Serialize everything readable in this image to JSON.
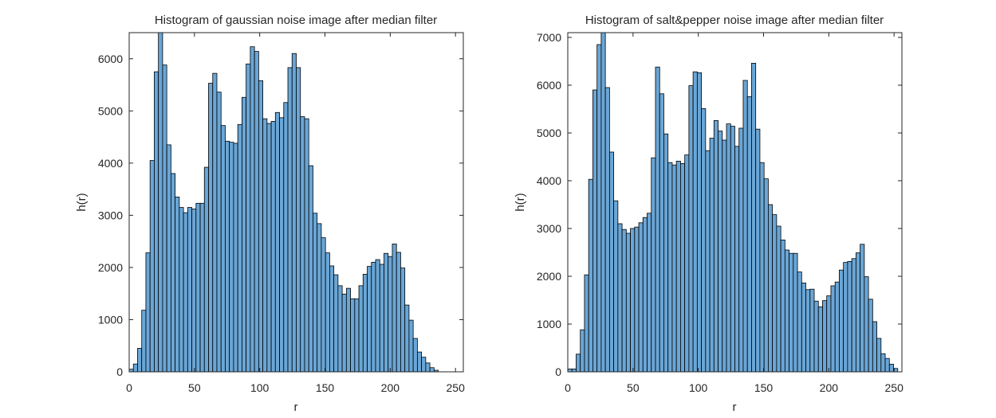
{
  "chart_data": [
    {
      "type": "bar",
      "title": "Histogram of gaussian noise image after median filter",
      "xlabel": "r",
      "ylabel": "h(r)",
      "xlim": [
        0,
        256
      ],
      "ylim": [
        0,
        6500
      ],
      "xticks": [
        0,
        50,
        100,
        150,
        200,
        250
      ],
      "yticks": [
        0,
        1000,
        2000,
        3000,
        4000,
        5000,
        6000
      ],
      "bin_start": 0,
      "bin_width": 3.2,
      "bar_color": "#6aa6d6",
      "edge_color": "#000000",
      "values": [
        50,
        150,
        450,
        1180,
        2280,
        4050,
        5750,
        6500,
        5880,
        4350,
        3800,
        3350,
        3150,
        3050,
        3150,
        3120,
        3230,
        3230,
        3920,
        5530,
        5720,
        5360,
        4720,
        4420,
        4400,
        4380,
        4740,
        5260,
        5900,
        6230,
        6140,
        5580,
        4850,
        4760,
        4800,
        4970,
        4870,
        5160,
        5830,
        6100,
        5830,
        4890,
        4850,
        3950,
        3040,
        2840,
        2570,
        2280,
        2030,
        1860,
        1650,
        1490,
        1600,
        1400,
        1400,
        1650,
        1870,
        2020,
        2100,
        2150,
        2060,
        2270,
        2210,
        2450,
        2290,
        1990,
        1280,
        990,
        640,
        380,
        280,
        170,
        80,
        30,
        0,
        0,
        0,
        0,
        0,
        0
      ]
    },
    {
      "type": "bar",
      "title": "Histogram of salt&pepper noise image after median filter",
      "xlabel": "r",
      "ylabel": "h(r)",
      "xlim": [
        0,
        256
      ],
      "ylim": [
        0,
        7100
      ],
      "xticks": [
        0,
        50,
        100,
        150,
        200,
        250
      ],
      "yticks": [
        0,
        1000,
        2000,
        3000,
        4000,
        5000,
        6000,
        7000
      ],
      "bin_start": 0,
      "bin_width": 3.2,
      "bar_color": "#6aa6d6",
      "edge_color": "#000000",
      "values": [
        60,
        60,
        370,
        880,
        2030,
        4030,
        5900,
        6850,
        7100,
        5950,
        4600,
        3580,
        3100,
        2980,
        2900,
        3000,
        3030,
        3120,
        3230,
        3320,
        4480,
        6380,
        5820,
        4980,
        4380,
        4330,
        4410,
        4360,
        4540,
        5990,
        6280,
        6260,
        5510,
        4630,
        4890,
        5260,
        5040,
        4850,
        5190,
        5140,
        4720,
        5100,
        6100,
        5760,
        6460,
        5080,
        4380,
        4040,
        3500,
        3290,
        3050,
        2760,
        2550,
        2480,
        2480,
        2090,
        1860,
        1720,
        1730,
        1480,
        1360,
        1490,
        1590,
        1800,
        1880,
        2130,
        2290,
        2310,
        2370,
        2490,
        2670,
        1990,
        1520,
        1050,
        700,
        380,
        280,
        160,
        70,
        0
      ]
    }
  ]
}
